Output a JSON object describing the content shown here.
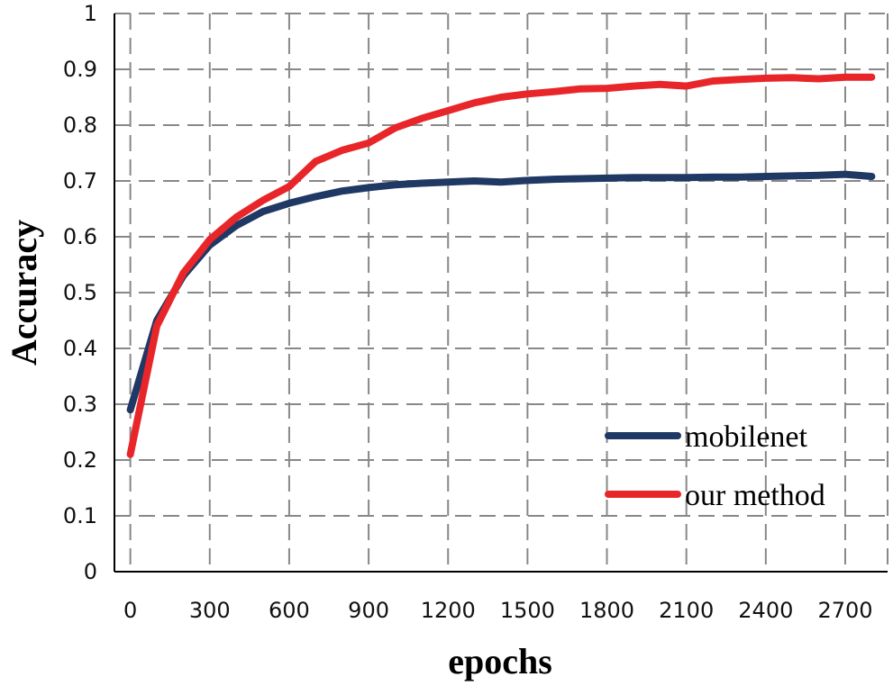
{
  "chart_data": {
    "type": "line",
    "title": "",
    "xlabel": "epochs",
    "ylabel": "Accuracy",
    "xlim": [
      -60,
      2860
    ],
    "ylim": [
      0,
      1
    ],
    "x_ticks": [
      0,
      300,
      600,
      900,
      1200,
      1500,
      1800,
      2100,
      2400,
      2700
    ],
    "y_ticks": [
      0,
      0.1,
      0.2,
      0.3,
      0.4,
      0.5,
      0.6,
      0.7,
      0.8,
      0.9,
      1
    ],
    "x_tick_labels": [
      "0",
      "300",
      "600",
      "900",
      "1200",
      "1500",
      "1800",
      "2100",
      "2400",
      "2700"
    ],
    "y_tick_labels": [
      "0",
      "0.1",
      "0.2",
      "0.3",
      "0.4",
      "0.5",
      "0.6",
      "0.7",
      "0.8",
      "0.9",
      "1"
    ],
    "grid": "dashed, both axes",
    "legend_position": "bottom-right",
    "series": [
      {
        "name": "mobilenet",
        "color": "#1f3864",
        "points": [
          [
            0,
            0.29
          ],
          [
            100,
            0.45
          ],
          [
            200,
            0.53
          ],
          [
            300,
            0.585
          ],
          [
            400,
            0.62
          ],
          [
            500,
            0.645
          ],
          [
            600,
            0.66
          ],
          [
            700,
            0.672
          ],
          [
            800,
            0.682
          ],
          [
            900,
            0.688
          ],
          [
            1000,
            0.693
          ],
          [
            1100,
            0.696
          ],
          [
            1200,
            0.698
          ],
          [
            1300,
            0.7
          ],
          [
            1400,
            0.698
          ],
          [
            1500,
            0.701
          ],
          [
            1600,
            0.703
          ],
          [
            1700,
            0.704
          ],
          [
            1800,
            0.705
          ],
          [
            1900,
            0.706
          ],
          [
            2000,
            0.706
          ],
          [
            2100,
            0.706
          ],
          [
            2200,
            0.707
          ],
          [
            2300,
            0.707
          ],
          [
            2400,
            0.708
          ],
          [
            2500,
            0.709
          ],
          [
            2600,
            0.71
          ],
          [
            2700,
            0.712
          ],
          [
            2800,
            0.708
          ]
        ]
      },
      {
        "name": "our method",
        "color": "#e8262a",
        "points": [
          [
            0,
            0.21
          ],
          [
            100,
            0.44
          ],
          [
            200,
            0.535
          ],
          [
            300,
            0.595
          ],
          [
            400,
            0.635
          ],
          [
            500,
            0.665
          ],
          [
            600,
            0.69
          ],
          [
            700,
            0.735
          ],
          [
            800,
            0.755
          ],
          [
            900,
            0.768
          ],
          [
            1000,
            0.795
          ],
          [
            1100,
            0.812
          ],
          [
            1200,
            0.826
          ],
          [
            1300,
            0.84
          ],
          [
            1400,
            0.85
          ],
          [
            1500,
            0.856
          ],
          [
            1600,
            0.86
          ],
          [
            1700,
            0.865
          ],
          [
            1800,
            0.866
          ],
          [
            1900,
            0.87
          ],
          [
            2000,
            0.873
          ],
          [
            2100,
            0.87
          ],
          [
            2200,
            0.879
          ],
          [
            2300,
            0.882
          ],
          [
            2400,
            0.884
          ],
          [
            2500,
            0.885
          ],
          [
            2600,
            0.883
          ],
          [
            2700,
            0.886
          ],
          [
            2800,
            0.886
          ]
        ]
      }
    ]
  }
}
